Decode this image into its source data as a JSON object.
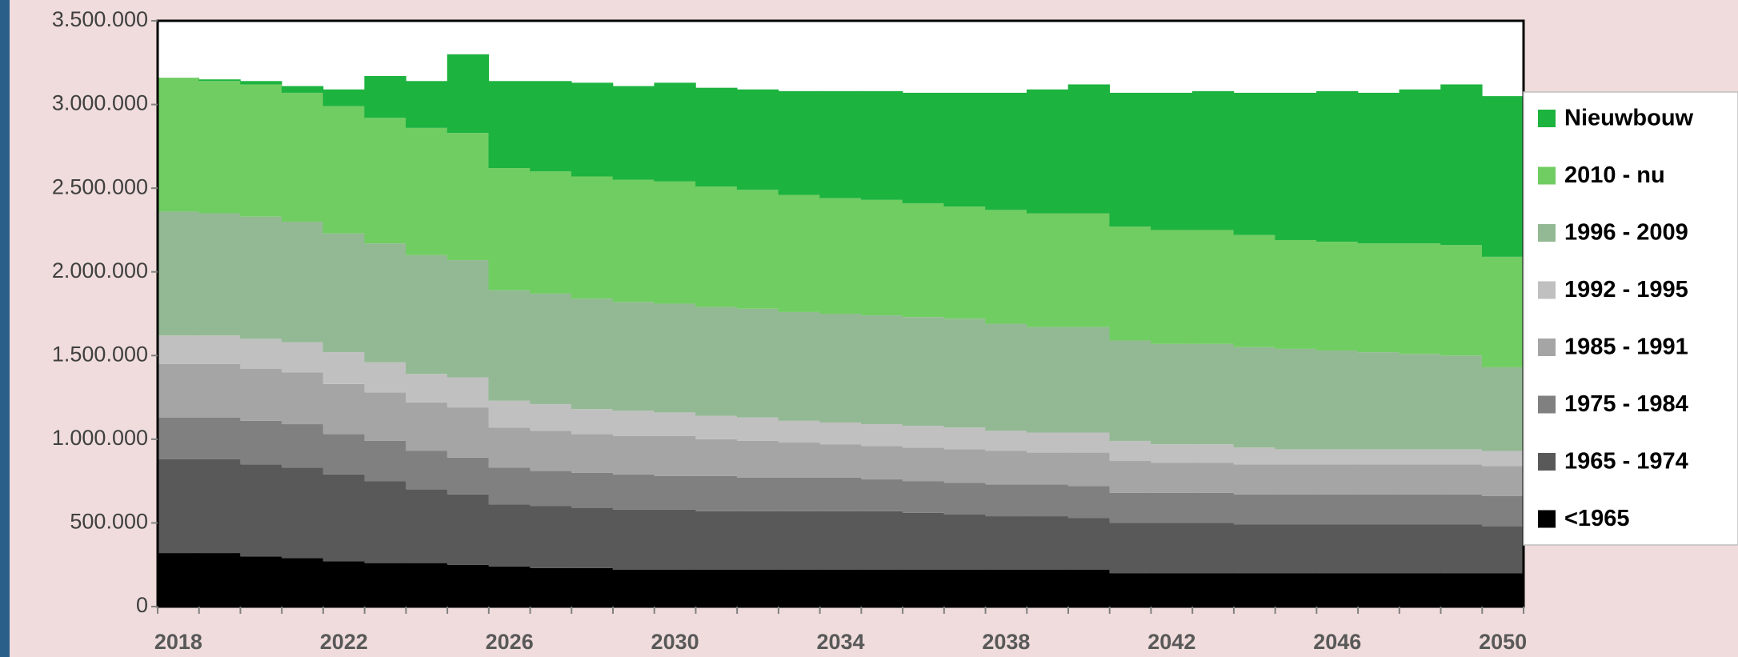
{
  "chart_data": {
    "type": "stacked-step-area",
    "categories": [
      "2018",
      null,
      null,
      null,
      "2022",
      null,
      null,
      null,
      "2026",
      null,
      null,
      null,
      "2030",
      null,
      null,
      null,
      "2034",
      null,
      null,
      null,
      "2038",
      null,
      null,
      null,
      "2042",
      null,
      null,
      null,
      "2046",
      null,
      null,
      null,
      "2050"
    ],
    "ylim": [
      0,
      3500000
    ],
    "yticks": [
      0,
      {
        "value": 500000,
        "label": "500.000"
      },
      {
        "value": 1000000,
        "label": "1.000.000"
      },
      {
        "value": 1500000,
        "label": "1.500.000"
      },
      {
        "value": 2000000,
        "label": "2.000.000"
      },
      {
        "value": 2500000,
        "label": "2.500.000"
      },
      {
        "value": 3000000,
        "label": "3.000.000"
      },
      {
        "value": 3500000,
        "label": "3.500.000"
      }
    ],
    "legend": "right",
    "series": [
      {
        "name": "<1965",
        "color": "#000000",
        "values": [
          320000,
          320000,
          300000,
          290000,
          270000,
          260000,
          260000,
          250000,
          240000,
          230000,
          230000,
          220000,
          220000,
          220000,
          220000,
          220000,
          220000,
          220000,
          220000,
          220000,
          220000,
          220000,
          220000,
          200000,
          200000,
          200000,
          200000,
          200000,
          200000,
          200000,
          200000,
          200000,
          200000
        ]
      },
      {
        "name": "1965 - 1974",
        "color": "#595959",
        "values": [
          560000,
          560000,
          550000,
          540000,
          520000,
          490000,
          440000,
          420000,
          370000,
          370000,
          360000,
          360000,
          360000,
          350000,
          350000,
          350000,
          350000,
          350000,
          340000,
          330000,
          320000,
          320000,
          310000,
          300000,
          300000,
          300000,
          290000,
          290000,
          290000,
          290000,
          290000,
          290000,
          280000
        ]
      },
      {
        "name": "1975 - 1984",
        "color": "#808080",
        "values": [
          250000,
          250000,
          260000,
          260000,
          240000,
          240000,
          230000,
          220000,
          220000,
          210000,
          210000,
          210000,
          200000,
          210000,
          200000,
          200000,
          200000,
          190000,
          190000,
          190000,
          190000,
          190000,
          190000,
          180000,
          180000,
          180000,
          180000,
          180000,
          180000,
          180000,
          180000,
          180000,
          180000
        ]
      },
      {
        "name": "1985 - 1991",
        "color": "#a5a5a5",
        "values": [
          320000,
          320000,
          310000,
          310000,
          300000,
          290000,
          290000,
          300000,
          240000,
          240000,
          230000,
          230000,
          240000,
          220000,
          220000,
          210000,
          200000,
          200000,
          200000,
          200000,
          200000,
          190000,
          200000,
          190000,
          180000,
          180000,
          180000,
          180000,
          180000,
          180000,
          180000,
          180000,
          180000
        ]
      },
      {
        "name": "1992 - 1995",
        "color": "#c0c0c0",
        "values": [
          170000,
          170000,
          180000,
          180000,
          190000,
          180000,
          170000,
          180000,
          160000,
          160000,
          150000,
          150000,
          140000,
          140000,
          140000,
          130000,
          130000,
          130000,
          130000,
          130000,
          120000,
          120000,
          120000,
          120000,
          110000,
          110000,
          100000,
          90000,
          90000,
          90000,
          90000,
          90000,
          90000
        ]
      },
      {
        "name": "1996 - 2009",
        "color": "#93b994",
        "values": [
          740000,
          730000,
          730000,
          720000,
          710000,
          710000,
          710000,
          700000,
          660000,
          660000,
          660000,
          650000,
          650000,
          650000,
          650000,
          650000,
          650000,
          650000,
          650000,
          650000,
          640000,
          630000,
          630000,
          600000,
          600000,
          600000,
          600000,
          600000,
          590000,
          580000,
          570000,
          560000,
          500000
        ]
      },
      {
        "name": "2010 - nu",
        "color": "#70cd62",
        "values": [
          800000,
          790000,
          790000,
          770000,
          760000,
          750000,
          760000,
          760000,
          730000,
          730000,
          730000,
          730000,
          730000,
          720000,
          710000,
          700000,
          690000,
          690000,
          680000,
          670000,
          680000,
          680000,
          680000,
          680000,
          680000,
          680000,
          670000,
          650000,
          650000,
          650000,
          660000,
          660000,
          660000
        ]
      },
      {
        "name": "Nieuwbouw",
        "color": "#1db33f",
        "values": [
          0,
          10000,
          20000,
          40000,
          100000,
          250000,
          280000,
          470000,
          520000,
          540000,
          560000,
          560000,
          590000,
          590000,
          600000,
          620000,
          640000,
          650000,
          660000,
          680000,
          700000,
          740000,
          770000,
          800000,
          820000,
          830000,
          850000,
          880000,
          900000,
          900000,
          920000,
          960000,
          960000
        ]
      }
    ]
  }
}
